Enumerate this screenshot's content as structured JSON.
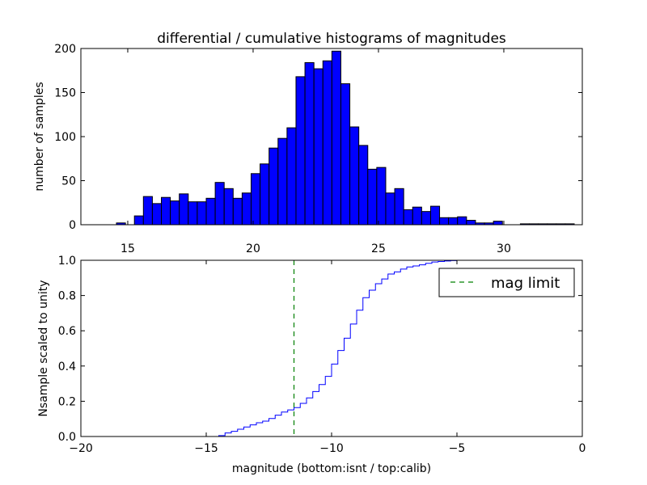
{
  "chart_data": [
    {
      "type": "bar",
      "title": "differential / cumulative histograms of magnitudes",
      "xlabel": "",
      "ylabel": "number of samples",
      "xlim": [
        13.13,
        33.13
      ],
      "ylim": [
        0,
        200
      ],
      "xticks": [
        15,
        20,
        25,
        30
      ],
      "yticks": [
        0,
        50,
        100,
        150,
        200
      ],
      "bin_start": 14.55,
      "bin_width": 0.358,
      "values": [
        2,
        0,
        10,
        32,
        24,
        31,
        27,
        35,
        26,
        26,
        30,
        48,
        41,
        30,
        36,
        58,
        69,
        87,
        98,
        110,
        168,
        184,
        177,
        186,
        197,
        160,
        111,
        90,
        63,
        65,
        36,
        41,
        17,
        20,
        15,
        21,
        8,
        8,
        9,
        5,
        2,
        2,
        4,
        0,
        0,
        1,
        1,
        1,
        1,
        1,
        1
      ],
      "bar_color": "#0000ff",
      "grid": false
    },
    {
      "type": "line",
      "xlabel": "magnitude (bottom:isnt / top:calib)",
      "ylabel": "Nsample scaled to unity",
      "xlim": [
        -20,
        0
      ],
      "ylim": [
        0,
        1.0
      ],
      "xticks": [
        -20,
        -15,
        -10,
        -5,
        0
      ],
      "yticks": [
        0.0,
        0.2,
        0.4,
        0.6,
        0.8,
        1.0
      ],
      "step_start": -14.5,
      "step_width": 0.25,
      "cumulative": [
        0.005,
        0.02,
        0.029,
        0.041,
        0.054,
        0.066,
        0.078,
        0.087,
        0.102,
        0.121,
        0.139,
        0.151,
        0.164,
        0.188,
        0.219,
        0.255,
        0.295,
        0.341,
        0.411,
        0.488,
        0.558,
        0.638,
        0.717,
        0.788,
        0.83,
        0.867,
        0.894,
        0.922,
        0.934,
        0.95,
        0.962,
        0.968,
        0.974,
        0.983,
        0.99,
        0.993,
        0.996,
        0.998,
        1.0
      ],
      "line_color": "#0000ff",
      "mag_limit": -11.5,
      "mag_limit_color": "#008000",
      "legend": {
        "label": "mag limit",
        "placement": "top-right"
      },
      "grid": false
    }
  ]
}
